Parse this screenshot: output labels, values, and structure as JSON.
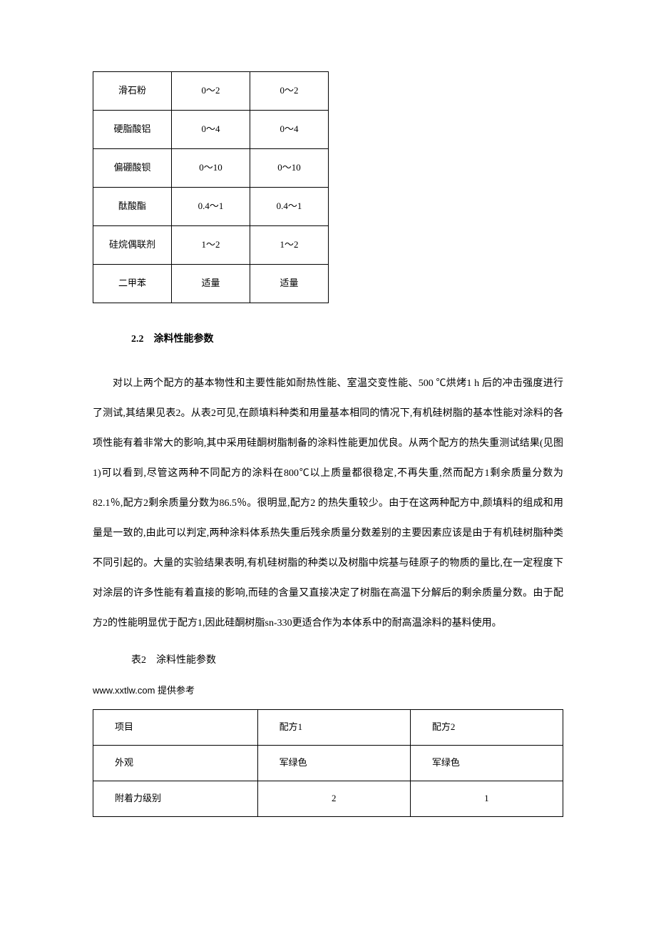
{
  "table1": {
    "rows": [
      {
        "name": "滑石粉",
        "val1": "0～2",
        "val2": "0～2"
      },
      {
        "name": "硬脂酸铝",
        "val1": "0～4",
        "val2": "0～4"
      },
      {
        "name": "偏硼酸钡",
        "val1": "0～10",
        "val2": "0～10"
      },
      {
        "name": "酞酸酯",
        "val1": "0.4～1",
        "val2": "0.4～1"
      },
      {
        "name": "硅烷偶联剂",
        "val1": "1～2",
        "val2": "1～2"
      },
      {
        "name": "二甲苯",
        "val1": "适量",
        "val2": "适量"
      }
    ]
  },
  "section_heading": "2.2　涂料性能参数",
  "body_paragraph": "对以上两个配方的基本物性和主要性能如耐热性能、室温交变性能、500 ℃烘烤1 h 后的冲击强度进行了测试,其结果见表2。从表2可见,在颜填料种类和用量基本相同的情况下,有机硅树脂的基本性能对涂料的各项性能有着非常大的影响,其中采用硅酮树脂制备的涂料性能更加优良。从两个配方的热失重测试结果(见图1)可以看到,尽管这两种不同配方的涂料在800℃以上质量都很稳定,不再失重,然而配方1剩余质量分数为82.1％,配方2剩余质量分数为86.5％。很明显,配方2 的热失重较少。由于在这两种配方中,颜填料的组成和用量是一致的,由此可以判定,两种涂料体系热失重后残余质量分数差别的主要因素应该是由于有机硅树脂种类不同引起的。大量的实验结果表明,有机硅树脂的种类以及树脂中烷基与硅原子的物质的量比,在一定程度下对涂层的许多性能有着直接的影响,而硅的含量又直接决定了树脂在高温下分解后的剩余质量分数。由于配方2的性能明显优于配方1,因此硅酮树脂sn-330更适合作为本体系中的耐高温涂料的基料使用。",
  "table2_caption": "表2　涂料性能参数",
  "footer_link": "www.xxtlw.com 提供参考",
  "table2": {
    "rows": [
      {
        "item": "项目",
        "val1": "配方1",
        "val2": "配方2",
        "center": false
      },
      {
        "item": "外观",
        "val1": "军绿色",
        "val2": "军绿色",
        "center": false
      },
      {
        "item": "附着力级别",
        "val1": "2",
        "val2": "1",
        "center": true
      }
    ]
  }
}
